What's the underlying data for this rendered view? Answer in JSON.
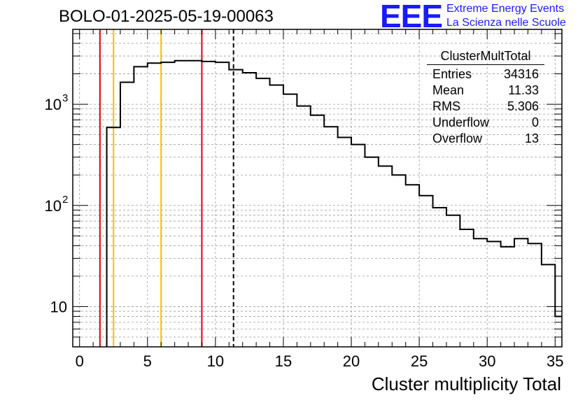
{
  "header": {
    "title": "BOLO-01-2025-05-19-00063",
    "logo_text": "EEE",
    "brand_line1": "Extreme Energy Events",
    "brand_line2": "La Scienza nelle Scuole"
  },
  "stats": {
    "name": "ClusterMultTotal",
    "rows": [
      {
        "label": "Entries",
        "value": "34316"
      },
      {
        "label": "Mean",
        "value": "11.33"
      },
      {
        "label": "RMS",
        "value": "5.306"
      },
      {
        "label": "Underflow",
        "value": "0"
      },
      {
        "label": "Overflow",
        "value": "13"
      }
    ]
  },
  "colors": {
    "red_line": "#e00000",
    "yellow_line": "#f0c000",
    "histogram": "#000000",
    "grid": "#9a9a9a"
  },
  "chart_data": {
    "type": "histogram",
    "xlabel": "Cluster multiplicity Total",
    "ylabel": "",
    "xlim": [
      -0.5,
      35.5
    ],
    "ylim": [
      4,
      5500
    ],
    "yscale": "log",
    "x_ticks": [
      0,
      5,
      10,
      15,
      20,
      25,
      30,
      35
    ],
    "y_ticks": [
      {
        "value": 10,
        "label": "10"
      },
      {
        "value": 100,
        "label": "10",
        "sup": "2"
      },
      {
        "value": 1000,
        "label": "10",
        "sup": "3"
      }
    ],
    "bin_width": 1,
    "bins": [
      {
        "x": 3,
        "count": 590
      },
      {
        "x": 4,
        "count": 1650
      },
      {
        "x": 5,
        "count": 2350
      },
      {
        "x": 6,
        "count": 2550
      },
      {
        "x": 7,
        "count": 2600
      },
      {
        "x": 8,
        "count": 2700
      },
      {
        "x": 9,
        "count": 2700
      },
      {
        "x": 10,
        "count": 2650
      },
      {
        "x": 11,
        "count": 2600
      },
      {
        "x": 12,
        "count": 2200
      },
      {
        "x": 13,
        "count": 2050
      },
      {
        "x": 14,
        "count": 1800
      },
      {
        "x": 15,
        "count": 1550
      },
      {
        "x": 16,
        "count": 1260
      },
      {
        "x": 17,
        "count": 960
      },
      {
        "x": 18,
        "count": 780
      },
      {
        "x": 19,
        "count": 600
      },
      {
        "x": 20,
        "count": 470
      },
      {
        "x": 21,
        "count": 400
      },
      {
        "x": 22,
        "count": 300
      },
      {
        "x": 23,
        "count": 245
      },
      {
        "x": 24,
        "count": 200
      },
      {
        "x": 25,
        "count": 160
      },
      {
        "x": 26,
        "count": 125
      },
      {
        "x": 27,
        "count": 95
      },
      {
        "x": 28,
        "count": 80
      },
      {
        "x": 29,
        "count": 58
      },
      {
        "x": 30,
        "count": 47
      },
      {
        "x": 31,
        "count": 44
      },
      {
        "x": 32,
        "count": 39
      },
      {
        "x": 33,
        "count": 47
      },
      {
        "x": 34,
        "count": 42
      },
      {
        "x": 35,
        "count": 26
      },
      {
        "x": 36,
        "count": 8
      }
    ],
    "vertical_lines": [
      {
        "x": 1.5,
        "color": "red",
        "style": "solid"
      },
      {
        "x": 2.5,
        "color": "yellow",
        "style": "solid"
      },
      {
        "x": 6.0,
        "color": "yellow",
        "style": "solid"
      },
      {
        "x": 9.0,
        "color": "red",
        "style": "solid"
      },
      {
        "x": 11.33,
        "color": "black",
        "style": "dashed"
      }
    ],
    "grid": true
  }
}
